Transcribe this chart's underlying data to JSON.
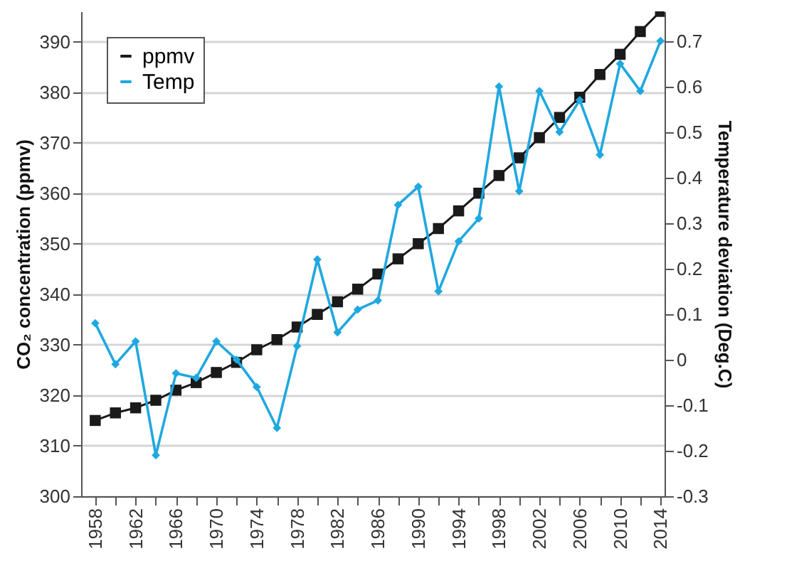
{
  "chart_data": {
    "type": "line",
    "xlabel": null,
    "ylabel": "CO₂ concentration (ppmv)",
    "y2label": "Temperature deviation (Deg.C)",
    "x": [
      1958,
      1960,
      1962,
      1964,
      1966,
      1968,
      1970,
      1972,
      1974,
      1976,
      1978,
      1980,
      1982,
      1984,
      1986,
      1988,
      1990,
      1992,
      1994,
      1996,
      1998,
      2000,
      2002,
      2004,
      2006,
      2008,
      2010,
      2012,
      2014
    ],
    "series": [
      {
        "name": "ppmv",
        "color": "#1a1a1a",
        "marker": "square",
        "values": [
          315,
          316.5,
          317.5,
          319,
          321,
          322.5,
          324.5,
          326.5,
          329,
          331,
          333.5,
          336,
          338.5,
          341,
          344,
          347,
          350,
          353,
          356.5,
          360,
          363.5,
          367,
          371,
          375,
          379,
          383.5,
          387.5,
          392,
          396
        ]
      },
      {
        "name": "Temp",
        "color": "#1fa8e0",
        "marker": "diamond",
        "axis": "y2",
        "values": [
          0.08,
          -0.01,
          0.04,
          -0.21,
          -0.03,
          -0.04,
          0.04,
          0.0,
          -0.06,
          -0.15,
          0.03,
          0.22,
          0.06,
          0.11,
          0.13,
          0.34,
          0.38,
          0.15,
          0.26,
          0.31,
          0.6,
          0.37,
          0.59,
          0.5,
          0.57,
          0.45,
          0.65,
          0.59,
          0.7
        ]
      }
    ],
    "xlim": [
      1956.6,
      2014.4
    ],
    "xticks": [
      1958,
      {
        "value": 1960,
        "label": null
      },
      1962,
      {
        "value": 1964,
        "label": null
      },
      1966,
      {
        "value": 1968,
        "label": null
      },
      1970,
      {
        "value": 1972,
        "label": null
      },
      1974,
      {
        "value": 1976,
        "label": null
      },
      1978,
      {
        "value": 1980,
        "label": null
      },
      1982,
      {
        "value": 1984,
        "label": null
      },
      1986,
      {
        "value": 1988,
        "label": null
      },
      1990,
      {
        "value": 1992,
        "label": null
      },
      1994,
      {
        "value": 1996,
        "label": null
      },
      1998,
      {
        "value": 2000,
        "label": null
      },
      2002,
      {
        "value": 2004,
        "label": null
      },
      2006,
      {
        "value": 2008,
        "label": null
      },
      2010,
      {
        "value": 2012,
        "label": null
      },
      2014
    ],
    "ylim": [
      300,
      396
    ],
    "yticks": [
      300,
      310,
      320,
      330,
      340,
      350,
      360,
      370,
      380,
      390
    ],
    "y2lim": [
      -0.3,
      0.765
    ],
    "y2ticks": [
      -0.3,
      -0.2,
      -0.1,
      0,
      0.1,
      0.2,
      0.3,
      0.4,
      0.5,
      0.6,
      0.7
    ],
    "grid": "y",
    "legend": "top left",
    "line_style": "solid"
  }
}
